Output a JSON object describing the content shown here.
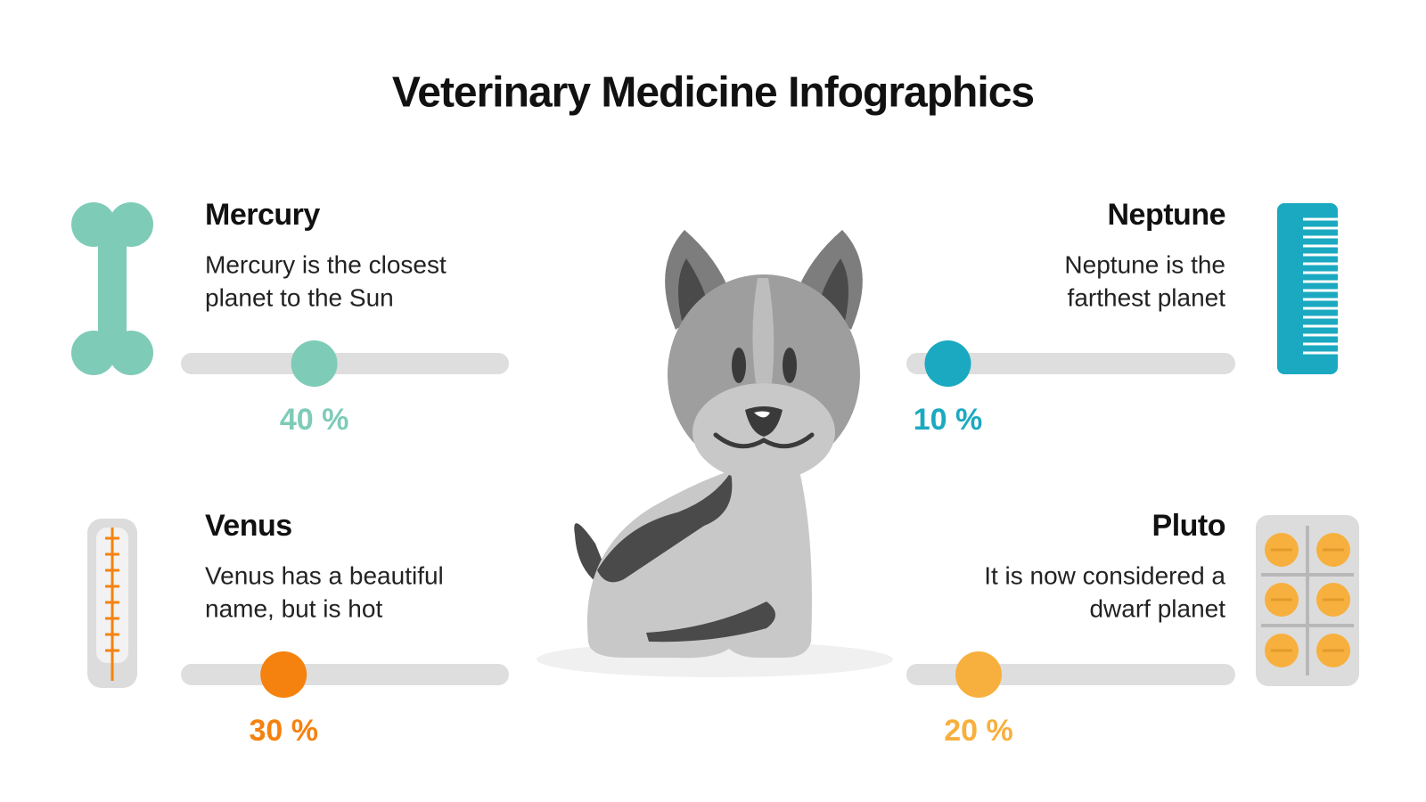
{
  "header": {
    "title": "Veterinary Medicine Infographics"
  },
  "xlim": [
    0,
    100
  ],
  "items": [
    {
      "name": "Mercury",
      "description": [
        "Mercury is the closest",
        "planet to the Sun"
      ],
      "value": 40,
      "value_label": "40 %",
      "color": "#7ecbb8"
    },
    {
      "name": "Neptune",
      "description": [
        "Neptune is the",
        "farthest planet"
      ],
      "value": 10,
      "value_label": "10 %",
      "color": "#1ba9c1"
    },
    {
      "name": "Venus",
      "description": [
        "Venus has a beautiful",
        "name, but is hot"
      ],
      "value": 30,
      "value_label": "30 %",
      "color": "#f5820f"
    },
    {
      "name": "Pluto",
      "description": [
        "It is now considered a",
        "dwarf planet"
      ],
      "value": 20,
      "value_label": "20 %",
      "color": "#f7b03d"
    }
  ]
}
